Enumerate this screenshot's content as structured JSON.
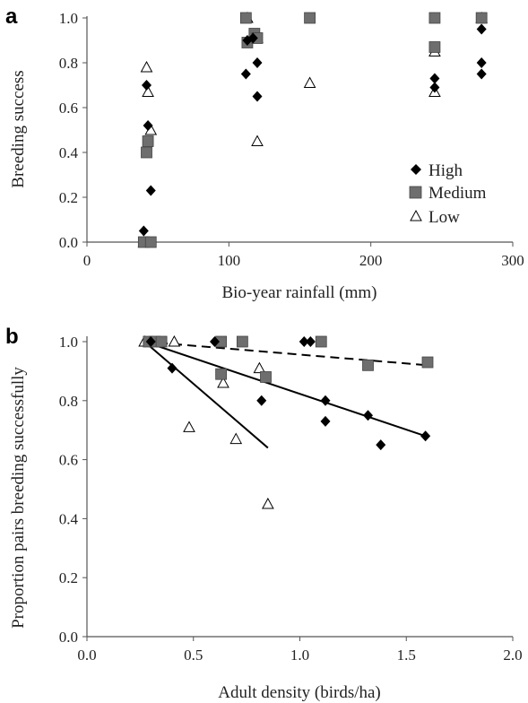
{
  "chart_data": [
    {
      "panel": "a",
      "type": "scatter",
      "xlabel": "Bio-year rainfall (mm)",
      "ylabel": "Breeding success",
      "xlim": [
        0,
        300
      ],
      "ylim": [
        0.0,
        1.0
      ],
      "xticks": [
        "0",
        "100",
        "200",
        "300"
      ],
      "yticks": [
        "0.0",
        "0.2",
        "0.4",
        "0.6",
        "0.8",
        "1.0"
      ],
      "legend_position": "bottom-right",
      "series": [
        {
          "name": "High",
          "marker": "diamond",
          "color": "#000000",
          "points": [
            [
              40,
              0.05
            ],
            [
              42,
              0.7
            ],
            [
              43,
              0.52
            ],
            [
              45,
              0.23
            ],
            [
              112,
              0.75
            ],
            [
              113,
              0.9
            ],
            [
              117,
              0.91
            ],
            [
              120,
              0.8
            ],
            [
              120,
              0.65
            ],
            [
              245,
              0.73
            ],
            [
              245,
              0.69
            ],
            [
              278,
              0.95
            ],
            [
              278,
              0.8
            ],
            [
              278,
              0.75
            ]
          ]
        },
        {
          "name": "Medium",
          "marker": "square",
          "color": "#6e6e6e",
          "points": [
            [
              40,
              0.0
            ],
            [
              42,
              0.4
            ],
            [
              43,
              0.45
            ],
            [
              45,
              0.0
            ],
            [
              112,
              1.0
            ],
            [
              113,
              0.89
            ],
            [
              118,
              0.93
            ],
            [
              120,
              0.91
            ],
            [
              157,
              1.0
            ],
            [
              245,
              1.0
            ],
            [
              245,
              0.87
            ],
            [
              278,
              1.0
            ]
          ]
        },
        {
          "name": "Low",
          "marker": "triangle",
          "color": "#000000",
          "points": [
            [
              40,
              0.0
            ],
            [
              42,
              0.78
            ],
            [
              43,
              0.67
            ],
            [
              45,
              0.5
            ],
            [
              113,
              1.0
            ],
            [
              120,
              0.91
            ],
            [
              120,
              0.45
            ],
            [
              157,
              0.71
            ],
            [
              245,
              0.85
            ],
            [
              245,
              0.67
            ],
            [
              278,
              1.0
            ]
          ]
        }
      ]
    },
    {
      "panel": "b",
      "type": "scatter",
      "xlabel": "Adult density (birds/ha)",
      "ylabel": "Proportion pairs breeding successfully",
      "xlim": [
        0.0,
        2.0
      ],
      "ylim": [
        0.0,
        1.0
      ],
      "xticks": [
        "0.0",
        "0.5",
        "1.0",
        "1.5",
        "2.0"
      ],
      "yticks": [
        "0.0",
        "0.2",
        "0.4",
        "0.6",
        "0.8",
        "1.0"
      ],
      "series": [
        {
          "name": "High",
          "marker": "diamond",
          "color": "#000000",
          "points": [
            [
              0.3,
              1.0
            ],
            [
              0.4,
              0.91
            ],
            [
              0.6,
              1.0
            ],
            [
              0.82,
              0.8
            ],
            [
              1.02,
              1.0
            ],
            [
              1.05,
              1.0
            ],
            [
              1.12,
              0.8
            ],
            [
              1.12,
              0.73
            ],
            [
              1.32,
              0.75
            ],
            [
              1.38,
              0.65
            ],
            [
              1.59,
              0.68
            ]
          ]
        },
        {
          "name": "Medium",
          "marker": "square",
          "color": "#6e6e6e",
          "points": [
            [
              0.29,
              1.0
            ],
            [
              0.32,
              1.0
            ],
            [
              0.35,
              1.0
            ],
            [
              0.63,
              1.0
            ],
            [
              0.63,
              0.89
            ],
            [
              0.73,
              1.0
            ],
            [
              0.84,
              0.88
            ],
            [
              1.1,
              1.0
            ],
            [
              1.32,
              0.92
            ],
            [
              1.6,
              0.93
            ]
          ]
        },
        {
          "name": "Low",
          "marker": "triangle",
          "color": "#000000",
          "points": [
            [
              0.27,
              1.0
            ],
            [
              0.41,
              1.0
            ],
            [
              0.48,
              0.71
            ],
            [
              0.64,
              0.86
            ],
            [
              0.7,
              0.67
            ],
            [
              0.81,
              0.91
            ],
            [
              0.85,
              0.45
            ]
          ]
        }
      ],
      "trend_lines": [
        {
          "series": "High",
          "style": "solid",
          "from": [
            0.27,
            1.0
          ],
          "to": [
            1.59,
            0.68
          ]
        },
        {
          "series": "Medium",
          "style": "dashed",
          "from": [
            0.27,
            1.0
          ],
          "to": [
            1.6,
            0.92
          ]
        },
        {
          "series": "Low",
          "style": "solid",
          "from": [
            0.27,
            1.0
          ],
          "to": [
            0.85,
            0.64
          ]
        }
      ]
    }
  ]
}
